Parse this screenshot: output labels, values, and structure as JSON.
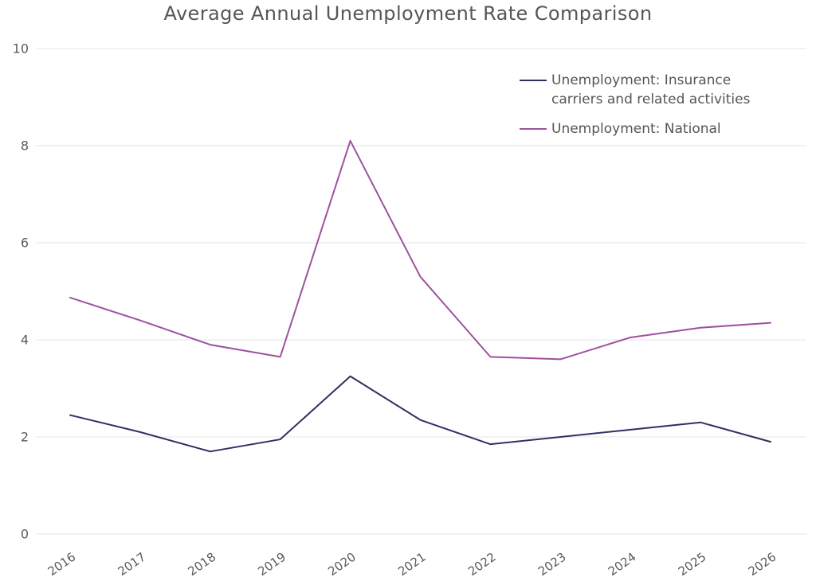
{
  "chart_data": {
    "type": "line",
    "title": "Average Annual Unemployment Rate Comparison",
    "x": [
      2016,
      2017,
      2018,
      2019,
      2020,
      2021,
      2022,
      2023,
      2024,
      2025,
      2026
    ],
    "series": [
      {
        "name": "Unemployment: Insurance carriers and related activities",
        "color": "#2e3160",
        "values": [
          2.45,
          2.1,
          1.7,
          1.95,
          3.25,
          2.35,
          1.85,
          2.0,
          2.15,
          2.3,
          1.9
        ]
      },
      {
        "name": "Unemployment: National",
        "color": "#9d529c",
        "values": [
          4.87,
          4.4,
          3.9,
          3.65,
          8.1,
          5.3,
          3.65,
          3.6,
          4.05,
          4.25,
          4.35
        ]
      }
    ],
    "xlabel": "",
    "ylabel": "",
    "ylim": [
      0,
      10
    ],
    "yticks": [
      0,
      2,
      4,
      6,
      8,
      10
    ],
    "grid": "horizontal",
    "gridline_color": "#e4e4e4",
    "text_color": "#5b5b5b",
    "legend_position": "top-right"
  }
}
